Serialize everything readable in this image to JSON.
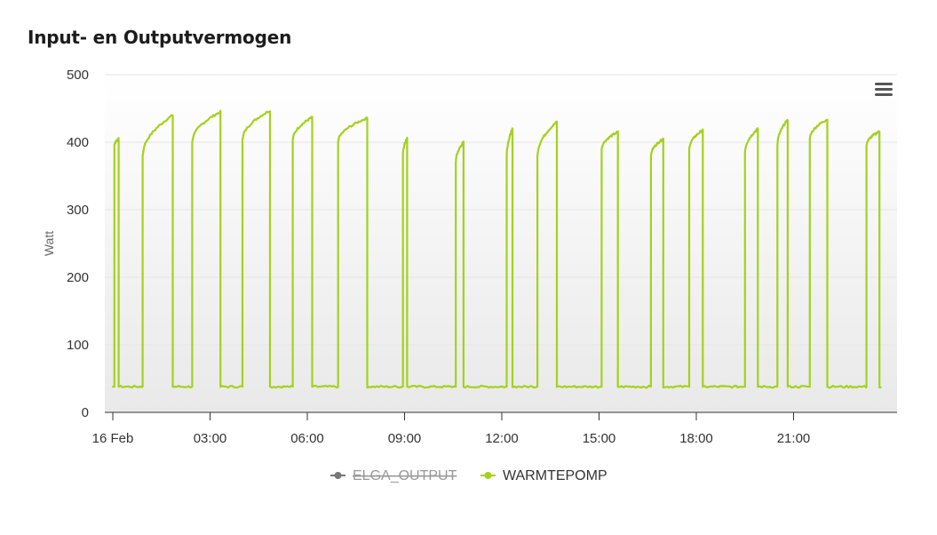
{
  "title": "Input- en Outputvermogen",
  "menu_icon": "hamburger-menu-icon",
  "chart_data": {
    "type": "line",
    "ylabel": "Watt",
    "ylim": [
      0,
      500
    ],
    "yticks": [
      "0",
      "100",
      "200",
      "300",
      "400",
      "500"
    ],
    "xlim_hours": [
      0,
      24
    ],
    "xticks": [
      {
        "h": 0,
        "label": "16 Feb"
      },
      {
        "h": 3,
        "label": "03:00"
      },
      {
        "h": 6,
        "label": "06:00"
      },
      {
        "h": 9,
        "label": "09:00"
      },
      {
        "h": 12,
        "label": "12:00"
      },
      {
        "h": 15,
        "label": "15:00"
      },
      {
        "h": 18,
        "label": "18:00"
      },
      {
        "h": 21,
        "label": "21:00"
      }
    ],
    "grid": true,
    "legend_position": "bottom-center",
    "series": [
      {
        "name": "ELGA_OUTPUT",
        "visible": false,
        "color": "#666666",
        "points": []
      },
      {
        "name": "WARMTEPOMP",
        "visible": true,
        "color": "#a4d11c",
        "baseline_w": 38,
        "cycles": [
          {
            "on": 0.05,
            "off": 0.18,
            "start_w": 395,
            "peak_w": 405
          },
          {
            "on": 0.92,
            "off": 1.85,
            "start_w": 380,
            "peak_w": 440
          },
          {
            "on": 2.45,
            "off": 3.32,
            "start_w": 400,
            "peak_w": 445
          },
          {
            "on": 4.0,
            "off": 4.85,
            "start_w": 403,
            "peak_w": 447
          },
          {
            "on": 5.55,
            "off": 6.15,
            "start_w": 403,
            "peak_w": 437
          },
          {
            "on": 6.95,
            "off": 7.85,
            "start_w": 400,
            "peak_w": 436
          },
          {
            "on": 8.95,
            "off": 9.08,
            "start_w": 382,
            "peak_w": 406
          },
          {
            "on": 10.58,
            "off": 10.82,
            "start_w": 370,
            "peak_w": 400
          },
          {
            "on": 12.15,
            "off": 12.33,
            "start_w": 378,
            "peak_w": 420
          },
          {
            "on": 13.1,
            "off": 13.7,
            "start_w": 380,
            "peak_w": 430
          },
          {
            "on": 15.08,
            "off": 15.58,
            "start_w": 390,
            "peak_w": 415
          },
          {
            "on": 16.6,
            "off": 16.98,
            "start_w": 380,
            "peak_w": 405
          },
          {
            "on": 17.78,
            "off": 18.2,
            "start_w": 390,
            "peak_w": 418
          },
          {
            "on": 19.5,
            "off": 19.9,
            "start_w": 385,
            "peak_w": 420
          },
          {
            "on": 20.5,
            "off": 20.82,
            "start_w": 395,
            "peak_w": 433
          },
          {
            "on": 21.5,
            "off": 22.04,
            "start_w": 405,
            "peak_w": 434
          },
          {
            "on": 23.25,
            "off": 23.65,
            "start_w": 395,
            "peak_w": 416
          }
        ]
      }
    ]
  }
}
